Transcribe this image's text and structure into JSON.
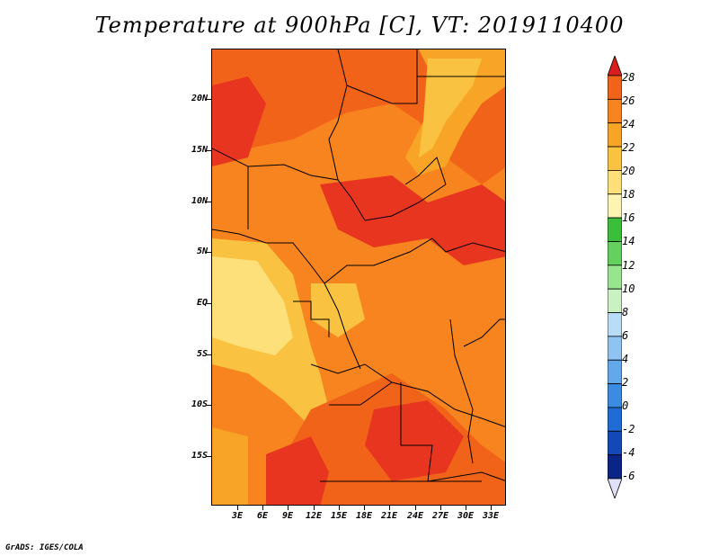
{
  "title": "Temperature at 900hPa [C], VT: 2019110400",
  "footer": "GrADS: IGES/COLA",
  "map": {
    "lat_labels": [
      "20N",
      "15N",
      "10N",
      "5N",
      "EQ",
      "5S",
      "10S",
      "15S"
    ],
    "lon_labels": [
      "3E",
      "6E",
      "9E",
      "12E",
      "15E",
      "18E",
      "21E",
      "24E",
      "27E",
      "30E",
      "33E"
    ]
  },
  "colorbar": {
    "labels": [
      "28",
      "26",
      "24",
      "22",
      "20",
      "18",
      "16",
      "14",
      "12",
      "10",
      "8",
      "6",
      "4",
      "2",
      "0",
      "-2",
      "-4",
      "-6"
    ],
    "colors": [
      "#e8351f",
      "#f2631a",
      "#f7841e",
      "#f8a527",
      "#f9c240",
      "#fde07a",
      "#fdf4b4",
      "#3bbf3a",
      "#64d15e",
      "#99e48f",
      "#c9f1c2",
      "#b9ddf6",
      "#8fc4f2",
      "#64a8ec",
      "#3b8be2",
      "#1f6cd4",
      "#1349b6",
      "#0a2488",
      "#080a56"
    ],
    "top_triangle_color": "#d81e1e",
    "bottom_triangle_color": "#e0e0f8"
  }
}
